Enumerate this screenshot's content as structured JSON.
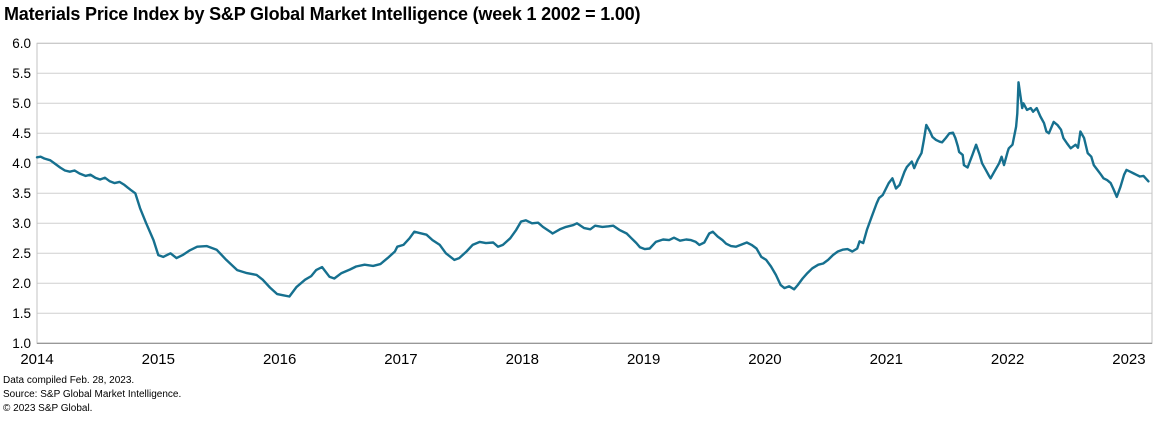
{
  "title": "Materials Price Index by S&P Global Market Intelligence (week 1 2002 = 1.00)",
  "footnotes": [
    "Data compiled Feb. 28, 2023.",
    "Source: S&P Global Market Intelligence.",
    "© 2023 S&P Global."
  ],
  "colors": {
    "line": "#16708F",
    "grid": "#cfcfcf",
    "plot_border": "#c3c3c3",
    "axis_bottom": "#8f8f8f",
    "axis_text": "#000000"
  },
  "chart_data": {
    "type": "line",
    "title": "Materials Price Index by S&P Global Market Intelligence (week 1 2002 = 1.00)",
    "xlabel": "",
    "ylabel": "",
    "legend": "none",
    "grid": "horizontal",
    "xlim": [
      2014.0,
      2023.19
    ],
    "ylim": [
      1.0,
      6.0
    ],
    "x_ticks": [
      2014,
      2015,
      2016,
      2017,
      2018,
      2019,
      2020,
      2021,
      2022,
      2023
    ],
    "y_tick_labels": [
      "6.0",
      "5.5",
      "5.0",
      "4.5",
      "4.0",
      "3.5",
      "3.0",
      "2.5",
      "2.0",
      "1.5",
      "1.0"
    ],
    "series": [
      {
        "name": "Materials Price Index (week 1 2002 = 1.00)",
        "points": [
          [
            2014.0,
            4.1
          ],
          [
            2014.03,
            4.11
          ],
          [
            2014.06,
            4.08
          ],
          [
            2014.11,
            4.05
          ],
          [
            2014.15,
            3.99
          ],
          [
            2014.19,
            3.93
          ],
          [
            2014.23,
            3.88
          ],
          [
            2014.27,
            3.86
          ],
          [
            2014.31,
            3.88
          ],
          [
            2014.35,
            3.83
          ],
          [
            2014.4,
            3.79
          ],
          [
            2014.44,
            3.81
          ],
          [
            2014.48,
            3.76
          ],
          [
            2014.52,
            3.73
          ],
          [
            2014.56,
            3.76
          ],
          [
            2014.6,
            3.7
          ],
          [
            2014.64,
            3.67
          ],
          [
            2014.68,
            3.69
          ],
          [
            2014.72,
            3.64
          ],
          [
            2014.77,
            3.56
          ],
          [
            2014.81,
            3.5
          ],
          [
            2014.85,
            3.25
          ],
          [
            2014.9,
            3.0
          ],
          [
            2014.96,
            2.72
          ],
          [
            2015.0,
            2.47
          ],
          [
            2015.04,
            2.44
          ],
          [
            2015.1,
            2.5
          ],
          [
            2015.15,
            2.42
          ],
          [
            2015.2,
            2.47
          ],
          [
            2015.26,
            2.55
          ],
          [
            2015.32,
            2.61
          ],
          [
            2015.4,
            2.62
          ],
          [
            2015.48,
            2.56
          ],
          [
            2015.56,
            2.39
          ],
          [
            2015.65,
            2.22
          ],
          [
            2015.73,
            2.17
          ],
          [
            2015.81,
            2.14
          ],
          [
            2015.86,
            2.06
          ],
          [
            2015.92,
            1.93
          ],
          [
            2015.98,
            1.82
          ],
          [
            2016.03,
            1.8
          ],
          [
            2016.08,
            1.78
          ],
          [
            2016.14,
            1.94
          ],
          [
            2016.21,
            2.06
          ],
          [
            2016.26,
            2.12
          ],
          [
            2016.3,
            2.22
          ],
          [
            2016.35,
            2.27
          ],
          [
            2016.41,
            2.11
          ],
          [
            2016.45,
            2.08
          ],
          [
            2016.51,
            2.17
          ],
          [
            2016.58,
            2.23
          ],
          [
            2016.63,
            2.28
          ],
          [
            2016.7,
            2.31
          ],
          [
            2016.77,
            2.29
          ],
          [
            2016.83,
            2.32
          ],
          [
            2016.89,
            2.42
          ],
          [
            2016.95,
            2.53
          ],
          [
            2016.97,
            2.61
          ],
          [
            2017.02,
            2.64
          ],
          [
            2017.07,
            2.75
          ],
          [
            2017.11,
            2.86
          ],
          [
            2017.15,
            2.84
          ],
          [
            2017.21,
            2.81
          ],
          [
            2017.26,
            2.72
          ],
          [
            2017.32,
            2.64
          ],
          [
            2017.37,
            2.5
          ],
          [
            2017.44,
            2.39
          ],
          [
            2017.48,
            2.42
          ],
          [
            2017.54,
            2.53
          ],
          [
            2017.59,
            2.64
          ],
          [
            2017.65,
            2.69
          ],
          [
            2017.7,
            2.67
          ],
          [
            2017.76,
            2.68
          ],
          [
            2017.8,
            2.61
          ],
          [
            2017.84,
            2.64
          ],
          [
            2017.9,
            2.75
          ],
          [
            2017.95,
            2.89
          ],
          [
            2017.99,
            3.03
          ],
          [
            2018.03,
            3.05
          ],
          [
            2018.08,
            3.0
          ],
          [
            2018.13,
            3.01
          ],
          [
            2018.17,
            2.94
          ],
          [
            2018.23,
            2.86
          ],
          [
            2018.25,
            2.83
          ],
          [
            2018.31,
            2.9
          ],
          [
            2018.36,
            2.94
          ],
          [
            2018.42,
            2.97
          ],
          [
            2018.45,
            3.0
          ],
          [
            2018.51,
            2.92
          ],
          [
            2018.56,
            2.9
          ],
          [
            2018.6,
            2.96
          ],
          [
            2018.66,
            2.94
          ],
          [
            2018.71,
            2.95
          ],
          [
            2018.75,
            2.96
          ],
          [
            2018.8,
            2.89
          ],
          [
            2018.86,
            2.83
          ],
          [
            2018.9,
            2.75
          ],
          [
            2018.94,
            2.67
          ],
          [
            2018.97,
            2.6
          ],
          [
            2019.01,
            2.57
          ],
          [
            2019.05,
            2.58
          ],
          [
            2019.1,
            2.69
          ],
          [
            2019.16,
            2.73
          ],
          [
            2019.21,
            2.72
          ],
          [
            2019.25,
            2.76
          ],
          [
            2019.3,
            2.71
          ],
          [
            2019.35,
            2.73
          ],
          [
            2019.39,
            2.72
          ],
          [
            2019.43,
            2.69
          ],
          [
            2019.46,
            2.64
          ],
          [
            2019.5,
            2.68
          ],
          [
            2019.54,
            2.83
          ],
          [
            2019.57,
            2.86
          ],
          [
            2019.61,
            2.78
          ],
          [
            2019.65,
            2.72
          ],
          [
            2019.68,
            2.66
          ],
          [
            2019.72,
            2.62
          ],
          [
            2019.76,
            2.61
          ],
          [
            2019.8,
            2.64
          ],
          [
            2019.85,
            2.68
          ],
          [
            2019.89,
            2.64
          ],
          [
            2019.93,
            2.58
          ],
          [
            2019.97,
            2.44
          ],
          [
            2020.01,
            2.39
          ],
          [
            2020.05,
            2.28
          ],
          [
            2020.09,
            2.14
          ],
          [
            2020.13,
            1.97
          ],
          [
            2020.16,
            1.92
          ],
          [
            2020.2,
            1.95
          ],
          [
            2020.24,
            1.9
          ],
          [
            2020.27,
            1.97
          ],
          [
            2020.31,
            2.08
          ],
          [
            2020.35,
            2.17
          ],
          [
            2020.39,
            2.25
          ],
          [
            2020.44,
            2.31
          ],
          [
            2020.48,
            2.33
          ],
          [
            2020.52,
            2.39
          ],
          [
            2020.56,
            2.47
          ],
          [
            2020.6,
            2.53
          ],
          [
            2020.64,
            2.56
          ],
          [
            2020.68,
            2.57
          ],
          [
            2020.72,
            2.53
          ],
          [
            2020.76,
            2.58
          ],
          [
            2020.78,
            2.7
          ],
          [
            2020.81,
            2.67
          ],
          [
            2020.84,
            2.89
          ],
          [
            2020.88,
            3.11
          ],
          [
            2020.92,
            3.33
          ],
          [
            2020.94,
            3.42
          ],
          [
            2020.97,
            3.47
          ],
          [
            2021.02,
            3.67
          ],
          [
            2021.05,
            3.75
          ],
          [
            2021.08,
            3.58
          ],
          [
            2021.11,
            3.64
          ],
          [
            2021.15,
            3.86
          ],
          [
            2021.17,
            3.94
          ],
          [
            2021.21,
            4.03
          ],
          [
            2021.23,
            3.92
          ],
          [
            2021.26,
            4.06
          ],
          [
            2021.29,
            4.17
          ],
          [
            2021.31,
            4.39
          ],
          [
            2021.33,
            4.64
          ],
          [
            2021.36,
            4.53
          ],
          [
            2021.38,
            4.44
          ],
          [
            2021.41,
            4.39
          ],
          [
            2021.44,
            4.36
          ],
          [
            2021.46,
            4.35
          ],
          [
            2021.49,
            4.42
          ],
          [
            2021.52,
            4.5
          ],
          [
            2021.55,
            4.51
          ],
          [
            2021.57,
            4.42
          ],
          [
            2021.59,
            4.28
          ],
          [
            2021.6,
            4.19
          ],
          [
            2021.63,
            4.14
          ],
          [
            2021.64,
            3.97
          ],
          [
            2021.67,
            3.93
          ],
          [
            2021.71,
            4.14
          ],
          [
            2021.74,
            4.31
          ],
          [
            2021.77,
            4.14
          ],
          [
            2021.79,
            4.0
          ],
          [
            2021.82,
            3.89
          ],
          [
            2021.85,
            3.78
          ],
          [
            2021.86,
            3.75
          ],
          [
            2021.89,
            3.86
          ],
          [
            2021.93,
            4.0
          ],
          [
            2021.95,
            4.11
          ],
          [
            2021.97,
            3.97
          ],
          [
            2022.0,
            4.19
          ],
          [
            2022.01,
            4.25
          ],
          [
            2022.04,
            4.31
          ],
          [
            2022.07,
            4.61
          ],
          [
            2022.08,
            4.83
          ],
          [
            2022.09,
            5.35
          ],
          [
            2022.11,
            5.06
          ],
          [
            2022.12,
            4.92
          ],
          [
            2022.13,
            5.0
          ],
          [
            2022.16,
            4.89
          ],
          [
            2022.19,
            4.92
          ],
          [
            2022.21,
            4.86
          ],
          [
            2022.24,
            4.92
          ],
          [
            2022.27,
            4.78
          ],
          [
            2022.3,
            4.67
          ],
          [
            2022.32,
            4.53
          ],
          [
            2022.34,
            4.5
          ],
          [
            2022.38,
            4.69
          ],
          [
            2022.41,
            4.64
          ],
          [
            2022.44,
            4.56
          ],
          [
            2022.46,
            4.42
          ],
          [
            2022.49,
            4.33
          ],
          [
            2022.52,
            4.25
          ],
          [
            2022.56,
            4.31
          ],
          [
            2022.58,
            4.26
          ],
          [
            2022.6,
            4.53
          ],
          [
            2022.63,
            4.42
          ],
          [
            2022.66,
            4.17
          ],
          [
            2022.69,
            4.11
          ],
          [
            2022.71,
            3.97
          ],
          [
            2022.74,
            3.89
          ],
          [
            2022.77,
            3.81
          ],
          [
            2022.79,
            3.75
          ],
          [
            2022.82,
            3.72
          ],
          [
            2022.85,
            3.67
          ],
          [
            2022.87,
            3.58
          ],
          [
            2022.9,
            3.44
          ],
          [
            2022.93,
            3.61
          ],
          [
            2022.96,
            3.81
          ],
          [
            2022.98,
            3.89
          ],
          [
            2023.01,
            3.86
          ],
          [
            2023.04,
            3.83
          ],
          [
            2023.06,
            3.81
          ],
          [
            2023.09,
            3.78
          ],
          [
            2023.12,
            3.79
          ],
          [
            2023.16,
            3.7
          ]
        ]
      }
    ]
  }
}
